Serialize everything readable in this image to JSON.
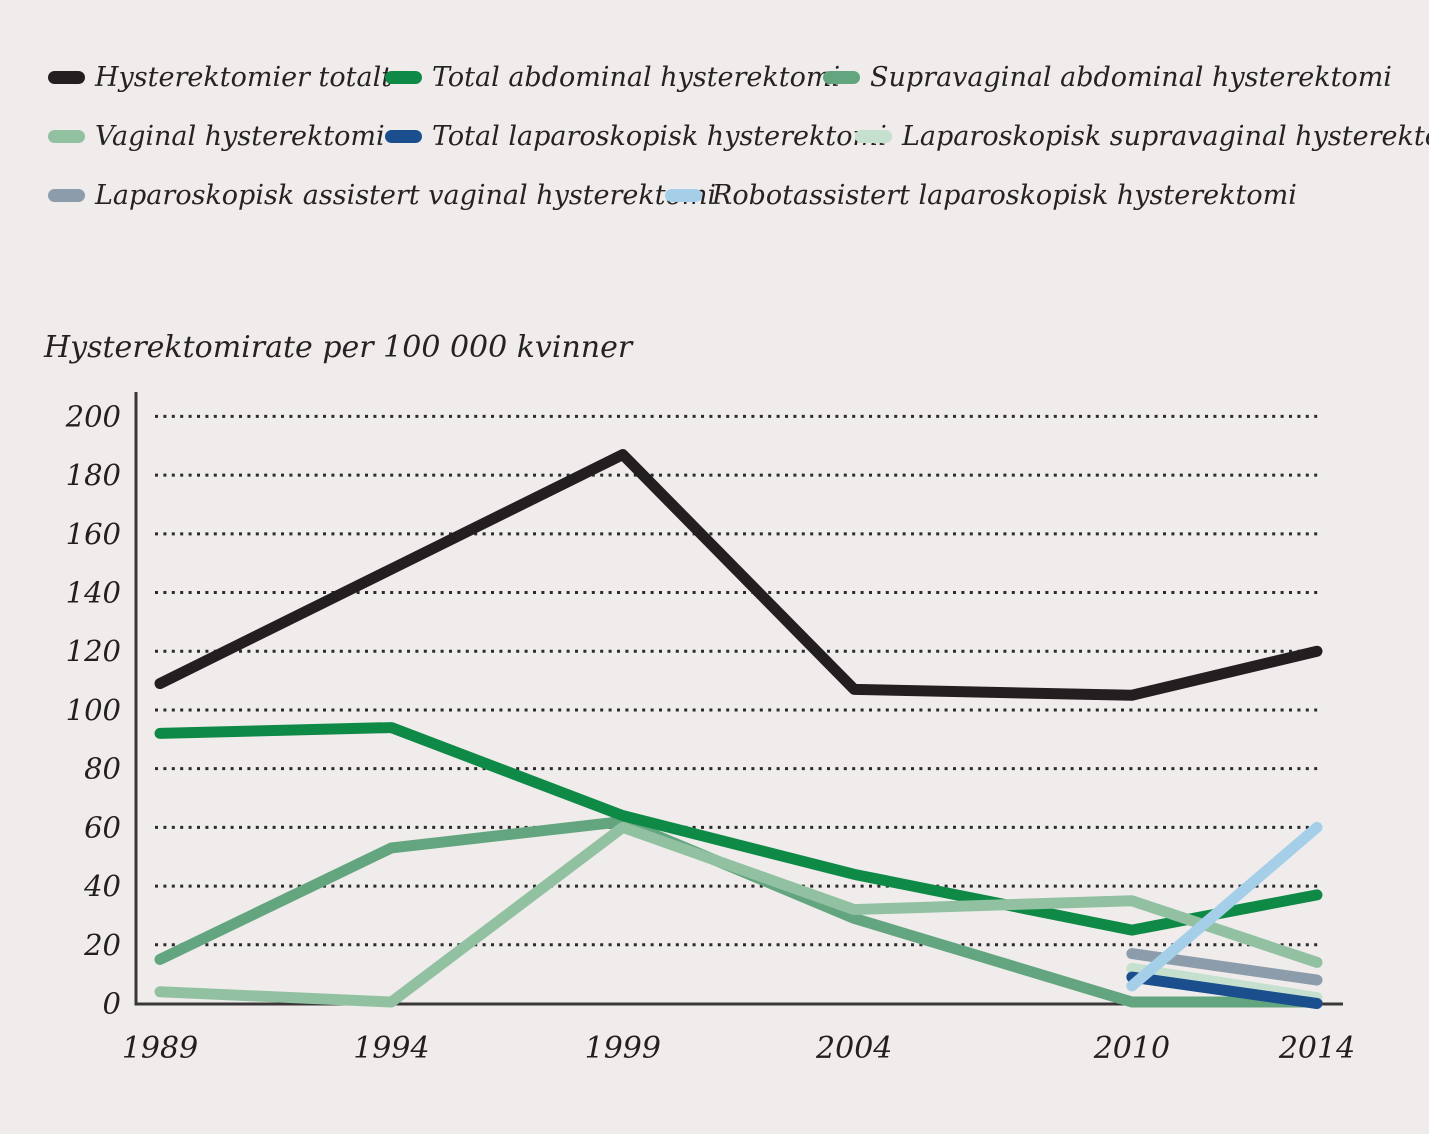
{
  "title": "Hysterektomirate per 100 000 kvinner",
  "background_color": "#efeceb",
  "text_color": "#262223",
  "axis_color": "#3b3738",
  "gridline_color": "#2b2b2b",
  "chart_data": {
    "type": "line",
    "title": "Hysterektomirate per 100 000 kvinner",
    "xlabel": "",
    "ylabel": "Hysterektomirate per 100 000 kvinner",
    "x_ticks": [
      1989,
      1994,
      1999,
      2004,
      2010,
      2014
    ],
    "ylim": [
      0,
      200
    ],
    "y_ticks": [
      0,
      20,
      40,
      60,
      80,
      100,
      120,
      140,
      160,
      180,
      200
    ],
    "grid": "horizontal-dotted",
    "legend_position": "top",
    "series": [
      {
        "name": "Hysterektomier totalt",
        "color": "#231f20",
        "legend_row": 0,
        "x": [
          1989,
          1994,
          1999,
          2004,
          2010,
          2014
        ],
        "values": [
          109,
          148,
          187,
          107,
          105,
          120
        ]
      },
      {
        "name": "Total abdominal hysterektomi",
        "color": "#0e8a46",
        "legend_row": 0,
        "x": [
          1989,
          1994,
          1999,
          2004,
          2010,
          2014
        ],
        "values": [
          92,
          94,
          64,
          44,
          25,
          37
        ]
      },
      {
        "name": "Supravaginal abdominal hysterektomi",
        "color": "#63a57e",
        "legend_row": 0,
        "x": [
          1989,
          1994,
          1999,
          2004,
          2010,
          2014
        ],
        "values": [
          15,
          53,
          62,
          29,
          0.5,
          0.5
        ]
      },
      {
        "name": "Vaginal hysterektomi",
        "color": "#92c1a2",
        "legend_row": 1,
        "x": [
          1989,
          1994,
          1999,
          2004,
          2010,
          2014
        ],
        "values": [
          4,
          0.5,
          60,
          32,
          35,
          14
        ]
      },
      {
        "name": "Total laparoskopisk hysterektomi",
        "color": "#1a4e8c",
        "legend_row": 1,
        "x": [
          2010,
          2014
        ],
        "values": [
          9,
          0
        ]
      },
      {
        "name": "Laparoskopisk supravaginal hysterektomi",
        "color": "#c5e0cf",
        "legend_row": 1,
        "x": [
          2010,
          2014
        ],
        "values": [
          12,
          2
        ]
      },
      {
        "name": "Laparoskopisk assistert vaginal hysterektomi",
        "color": "#8d9cab",
        "legend_row": 2,
        "x": [
          2010,
          2014
        ],
        "values": [
          17,
          8
        ]
      },
      {
        "name": "Robotassistert laparoskopisk hysterektomi",
        "color": "#a5cfe8",
        "legend_row": 2,
        "x": [
          2010,
          2014
        ],
        "values": [
          6,
          60
        ]
      }
    ]
  }
}
